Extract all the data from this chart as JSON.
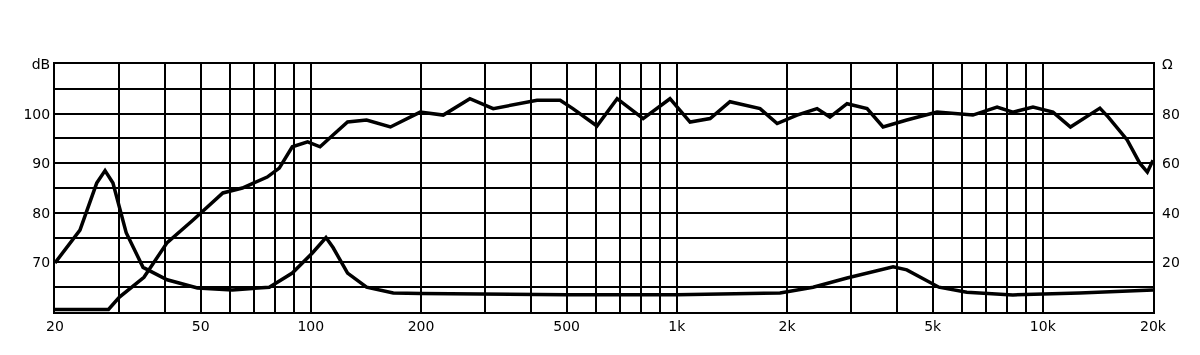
{
  "chart_data": {
    "type": "line",
    "log": "x",
    "grid": true,
    "marker": "none",
    "line_style": "solid",
    "xlim": [
      20,
      20000
    ],
    "xticks": [
      20,
      {
        "value": 30,
        "label": null
      },
      {
        "value": 40,
        "label": null
      },
      50,
      {
        "value": 60,
        "label": null
      },
      {
        "value": 70,
        "label": null
      },
      {
        "value": 80,
        "label": null
      },
      {
        "value": 90,
        "label": null
      },
      100,
      200,
      {
        "value": 300,
        "label": null
      },
      {
        "value": 400,
        "label": null
      },
      500,
      {
        "value": 600,
        "label": null
      },
      {
        "value": 700,
        "label": null
      },
      {
        "value": 800,
        "label": null
      },
      {
        "value": 900,
        "label": null
      },
      {
        "value": 1000,
        "label": "1k"
      },
      {
        "value": 2000,
        "label": "2k"
      },
      {
        "value": 3000,
        "label": null
      },
      {
        "value": 4000,
        "label": null
      },
      {
        "value": 5000,
        "label": "5k"
      },
      {
        "value": 6000,
        "label": null
      },
      {
        "value": 7000,
        "label": null
      },
      {
        "value": 8000,
        "label": null
      },
      {
        "value": 9000,
        "label": null
      },
      {
        "value": 10000,
        "label": "10k"
      },
      {
        "value": 20000,
        "label": "20k"
      }
    ],
    "ylim": [
      60,
      110
    ],
    "yticks": [
      {
        "value": 65,
        "label": null
      },
      70,
      {
        "value": 75,
        "label": null
      },
      80,
      {
        "value": 85,
        "label": null
      },
      90,
      {
        "value": 95,
        "label": null
      },
      100,
      {
        "value": 105,
        "label": null
      },
      {
        "value": 110,
        "label": "dB"
      }
    ],
    "y2lim": [
      0,
      100
    ],
    "y2ticks": [
      20,
      40,
      60,
      80,
      {
        "value": 100,
        "label": "Ω"
      }
    ],
    "series": [
      {
        "color": "#000000",
        "x": [
          20,
          28,
          30,
          35,
          40.5,
          47.6,
          57.5,
          65,
          76,
          82,
          89,
          98,
          106,
          115,
          126,
          142,
          165,
          199,
          230,
          272,
          315,
          415,
          480,
          520,
          605,
          687,
          809,
          958,
          1087,
          1233,
          1397,
          1688,
          1880,
          2130,
          2416,
          2620,
          2918,
          3310,
          3660,
          4250,
          5140,
          6440,
          7500,
          8280,
          9400,
          10660,
          11900,
          14320,
          15100,
          17000,
          18400,
          19300,
          20000
        ],
        "values": [
          60.5,
          60.5,
          63,
          67,
          74,
          78.5,
          84,
          85,
          87.2,
          89,
          93.3,
          94.3,
          93.3,
          95.7,
          98.3,
          98.7,
          97.3,
          100.3,
          99.7,
          103,
          101,
          102.7,
          102.7,
          101,
          97.5,
          103,
          99,
          103,
          98.3,
          99,
          102.4,
          101,
          98,
          99.7,
          101,
          99.3,
          102,
          101,
          97.3,
          98.7,
          100.3,
          99.7,
          101.3,
          100.3,
          101.3,
          100.3,
          97.3,
          101.1,
          99.3,
          94.7,
          90,
          88.2,
          90.6
        ]
      },
      {
        "color": "#000000",
        "axis": "y2",
        "x": [
          20,
          23.4,
          26,
          27.4,
          28.8,
          31.3,
          34.8,
          40.5,
          49,
          61,
          77,
          89,
          101,
          110,
          115,
          126,
          142,
          168,
          200,
          500,
          1000,
          1914,
          2356,
          2918,
          3900,
          4250,
          5200,
          6200,
          8280,
          12600,
          20000
        ],
        "values": [
          19.8,
          33,
          52,
          57,
          52,
          32,
          18,
          13,
          9.7,
          8.9,
          10,
          15.7,
          23.8,
          30,
          26,
          15.7,
          10,
          7.7,
          7.5,
          7,
          7,
          7.7,
          10,
          13.7,
          18.2,
          17,
          10,
          8,
          6.9,
          7.7,
          8.9
        ]
      }
    ]
  }
}
